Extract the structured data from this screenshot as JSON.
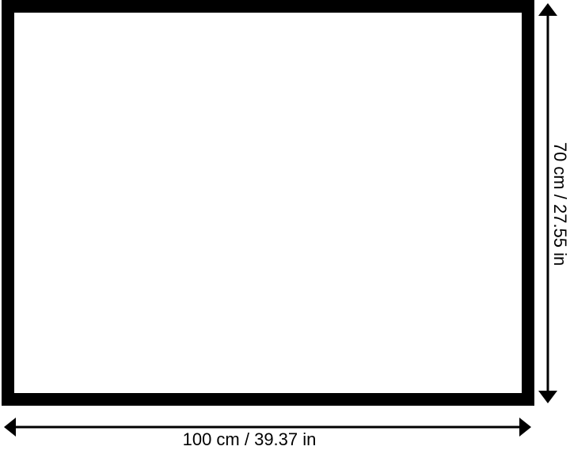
{
  "dimensions": {
    "width_label": "100 cm / 39.37 in",
    "height_label": "70 cm / 27.55 in"
  },
  "colors": {
    "frame": "#000000",
    "background": "#ffffff"
  }
}
